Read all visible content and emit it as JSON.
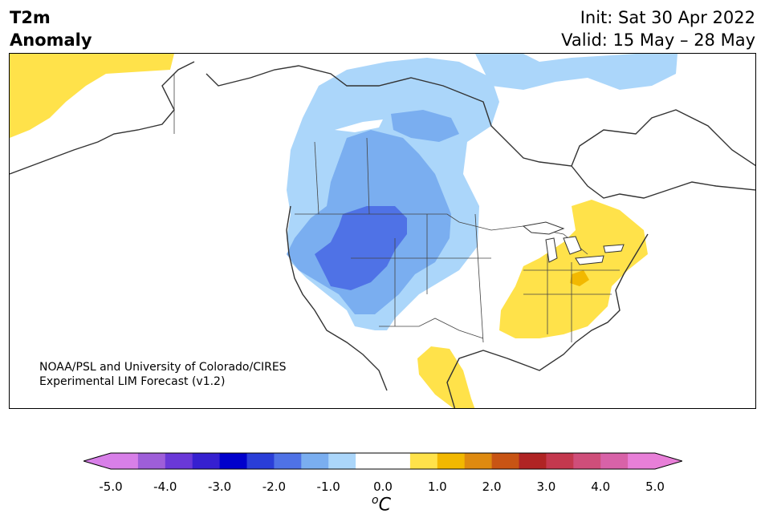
{
  "header": {
    "title_line1": "T2m",
    "title_line2": "Anomaly",
    "init": "Init: Sat 30 Apr 2022",
    "valid": "Valid: 15 May – 28 May"
  },
  "credit": {
    "line1": "NOAA/PSL and University of Colorado/CIRES",
    "line2": "Experimental LIM Forecast (v1.2)"
  },
  "colorbar": {
    "unit_sup": "o",
    "unit": "C",
    "tick_labels": [
      "-5.0",
      "-4.0",
      "-3.0",
      "-2.0",
      "-1.0",
      "0.0",
      "1.0",
      "2.0",
      "3.0",
      "4.0",
      "5.0"
    ],
    "under_color": "#d87fe8",
    "over_color": "#e87fd8",
    "colors": [
      "#d87fe8",
      "#9e5ed9",
      "#6a38d8",
      "#3620d0",
      "#0000cc",
      "#2a3ed8",
      "#4f72e6",
      "#7aaef0",
      "#abd6fa",
      "#ffffff",
      "#ffffff",
      "#ffe24a",
      "#f2b800",
      "#de8a10",
      "#c85414",
      "#b02424",
      "#c4384e",
      "#cf4e7a",
      "#d862a8",
      "#e87fd8"
    ]
  },
  "map": {
    "projection": "Lambert conformal, North America",
    "fields": [
      {
        "name": "cold",
        "anomaly_c": -0.5,
        "color": "#abd6fa"
      },
      {
        "name": "cold",
        "anomaly_c": -1.0,
        "color": "#7aaef0"
      },
      {
        "name": "cold",
        "anomaly_c": -1.5,
        "color": "#4f72e6"
      },
      {
        "name": "warm",
        "anomaly_c": 0.5,
        "color": "#ffe24a"
      },
      {
        "name": "warm",
        "anomaly_c": 1.0,
        "color": "#f2b800"
      }
    ]
  }
}
